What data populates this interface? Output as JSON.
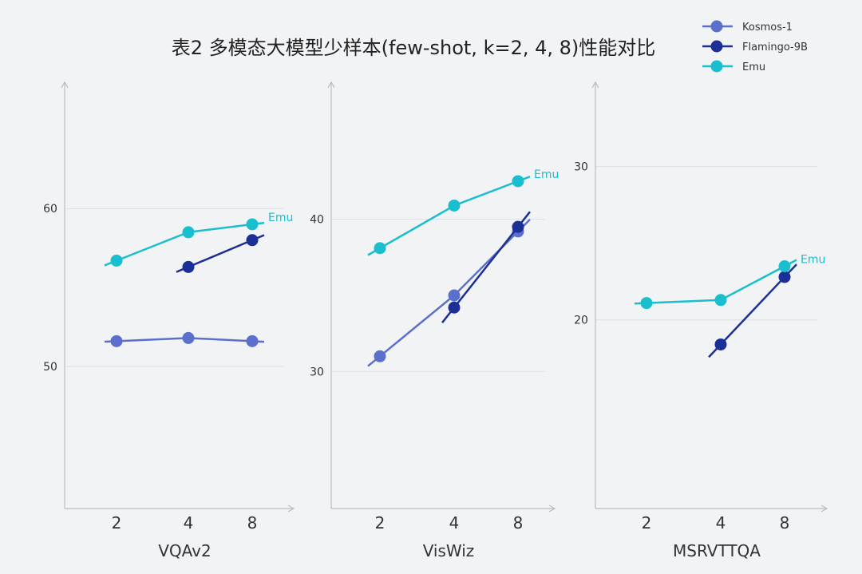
{
  "title": "表2 多模态大模型少样本(few-shot, k=2, 4, 8)性能对比",
  "legend": [
    {
      "name": "Kosmos-1",
      "color": "#5b6fcc"
    },
    {
      "name": "Flamingo-9B",
      "color": "#1b2f96"
    },
    {
      "name": "Emu",
      "color": "#19bfcf"
    }
  ],
  "chart_data": [
    {
      "type": "line",
      "xlabel": "VQAv2",
      "categories": [
        "2",
        "4",
        "8"
      ],
      "y_ticks": [
        50,
        60
      ],
      "ylim": [
        41,
        68
      ],
      "series": [
        {
          "name": "Kosmos-1",
          "values": [
            51.6,
            51.8,
            51.6
          ]
        },
        {
          "name": "Flamingo-9B",
          "values": [
            null,
            56.3,
            58.0
          ]
        },
        {
          "name": "Emu",
          "values": [
            56.7,
            58.5,
            59.0
          ]
        }
      ],
      "series_label": "Emu"
    },
    {
      "type": "line",
      "xlabel": "VisWiz",
      "categories": [
        "2",
        "4",
        "8"
      ],
      "y_ticks": [
        30,
        40
      ],
      "ylim": [
        21,
        49
      ],
      "series": [
        {
          "name": "Kosmos-1",
          "values": [
            31.0,
            35.0,
            39.2
          ]
        },
        {
          "name": "Flamingo-9B",
          "values": [
            null,
            34.2,
            39.5
          ]
        },
        {
          "name": "Emu",
          "values": [
            38.1,
            40.9,
            42.5
          ]
        }
      ],
      "series_label": "Emu"
    },
    {
      "type": "line",
      "xlabel": "MSRVTTQA",
      "categories": [
        "2",
        "4",
        "8"
      ],
      "y_ticks": [
        20,
        30
      ],
      "ylim": [
        7.7,
        35.5
      ],
      "series": [
        {
          "name": "Kosmos-1",
          "values": [
            null,
            null,
            null
          ]
        },
        {
          "name": "Flamingo-9B",
          "values": [
            null,
            18.4,
            22.8
          ]
        },
        {
          "name": "Emu",
          "values": [
            21.1,
            21.3,
            23.5
          ]
        }
      ],
      "series_label": "Emu"
    }
  ]
}
